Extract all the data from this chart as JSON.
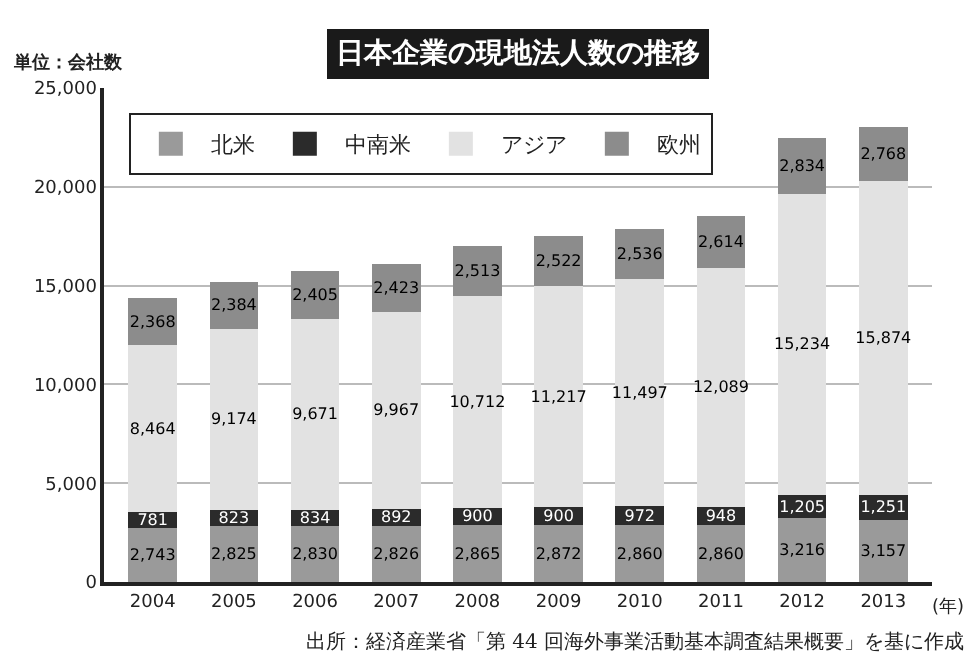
{
  "chart_data": {
    "type": "bar",
    "stacked": true,
    "title": "日本企業の現地法人数の推移",
    "ylabel": "単位：会社数",
    "xlabel": "(年)",
    "annotations": [
      "出所：経済産業省「第 44 回海外事業活動基本調査結果概要」を基に作成"
    ],
    "categories": [
      "2004",
      "2005",
      "2006",
      "2007",
      "2008",
      "2009",
      "2010",
      "2011",
      "2012",
      "2013"
    ],
    "series": [
      {
        "name": "北米",
        "color": "#9a9a9a",
        "values": [
          2743,
          2825,
          2830,
          2826,
          2865,
          2872,
          2860,
          2860,
          3216,
          3157
        ],
        "value_labels": [
          "2,743",
          "2,825",
          "2,830",
          "2,826",
          "2,865",
          "2,872",
          "2,860",
          "2,860",
          "3,216",
          "3,157"
        ]
      },
      {
        "name": "中南米",
        "color": "#2b2b2b",
        "values": [
          781,
          823,
          834,
          892,
          900,
          900,
          972,
          948,
          1205,
          1251
        ],
        "value_labels": [
          "781",
          "823",
          "834",
          "892",
          "900",
          "900",
          "972",
          "948",
          "1,205",
          "1,251"
        ]
      },
      {
        "name": "アジア",
        "color": "#e2e2e2",
        "values": [
          8464,
          9174,
          9671,
          9967,
          10712,
          11217,
          11497,
          12089,
          15234,
          15874
        ],
        "value_labels": [
          "8,464",
          "9,174",
          "9,671",
          "9,967",
          "10,712",
          "11,217",
          "11,497",
          "12,089",
          "15,234",
          "15,874"
        ]
      },
      {
        "name": "欧州",
        "color": "#8c8c8c",
        "values": [
          2368,
          2384,
          2405,
          2423,
          2513,
          2522,
          2536,
          2614,
          2834,
          2768
        ],
        "value_labels": [
          "2,368",
          "2,384",
          "2,405",
          "2,423",
          "2,513",
          "2,522",
          "2,536",
          "2,614",
          "2,834",
          "2,768"
        ]
      }
    ],
    "ylim": [
      0,
      25000
    ],
    "yticks": [
      {
        "value": 0,
        "label": "0"
      },
      {
        "value": 5000,
        "label": "5,000"
      },
      {
        "value": 10000,
        "label": "10,000"
      },
      {
        "value": 15000,
        "label": "15,000"
      },
      {
        "value": 20000,
        "label": "20,000"
      },
      {
        "value": 25000,
        "label": "25,000"
      }
    ],
    "grid": "y",
    "legend": "top left"
  }
}
